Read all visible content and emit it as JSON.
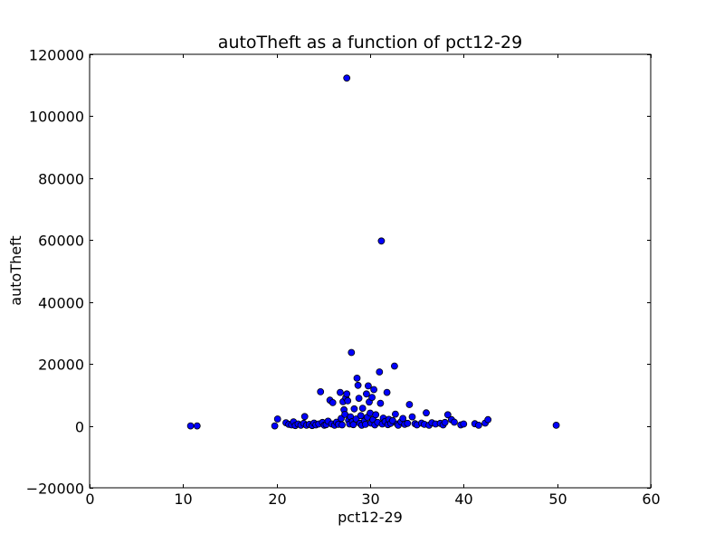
{
  "chart_data": {
    "type": "scatter",
    "title": "autoTheft as a function of pct12-29",
    "xlabel": "pct12-29",
    "ylabel": "autoTheft",
    "xlim": [
      0,
      60
    ],
    "ylim": [
      -20000,
      120000
    ],
    "xticks": [
      0,
      10,
      20,
      30,
      40,
      50,
      60
    ],
    "yticks": [
      -20000,
      0,
      20000,
      40000,
      60000,
      80000,
      100000,
      120000
    ],
    "xtick_labels": [
      "0",
      "10",
      "20",
      "30",
      "40",
      "50",
      "60"
    ],
    "ytick_labels": [
      "−20000",
      "0",
      "20000",
      "40000",
      "60000",
      "80000",
      "100000",
      "120000"
    ],
    "grid": false,
    "marker_color": "#0000ff",
    "marker_edge": "#000000",
    "series": [
      {
        "points": [
          [
            10.8,
            0
          ],
          [
            11.5,
            0
          ],
          [
            19.8,
            0
          ],
          [
            20.1,
            2200
          ],
          [
            21.0,
            1000
          ],
          [
            21.3,
            500
          ],
          [
            21.6,
            300
          ],
          [
            21.8,
            1300
          ],
          [
            22.0,
            100
          ],
          [
            22.3,
            600
          ],
          [
            22.6,
            200
          ],
          [
            22.9,
            800
          ],
          [
            23.0,
            3000
          ],
          [
            23.2,
            200
          ],
          [
            23.5,
            500
          ],
          [
            23.8,
            100
          ],
          [
            24.0,
            900
          ],
          [
            24.2,
            300
          ],
          [
            24.5,
            600
          ],
          [
            24.7,
            11000
          ],
          [
            24.9,
            1100
          ],
          [
            25.1,
            200
          ],
          [
            25.3,
            400
          ],
          [
            25.5,
            1500
          ],
          [
            25.7,
            8300
          ],
          [
            25.9,
            600
          ],
          [
            26.0,
            7500
          ],
          [
            26.2,
            200
          ],
          [
            26.4,
            1200
          ],
          [
            26.6,
            500
          ],
          [
            26.8,
            10800
          ],
          [
            26.9,
            2400
          ],
          [
            27.0,
            300
          ],
          [
            27.1,
            7800
          ],
          [
            27.2,
            5200
          ],
          [
            27.3,
            3700
          ],
          [
            27.4,
            9100
          ],
          [
            27.5,
            10300
          ],
          [
            27.5,
            112300
          ],
          [
            27.6,
            8100
          ],
          [
            27.7,
            1800
          ],
          [
            27.8,
            600
          ],
          [
            27.9,
            2900
          ],
          [
            28.0,
            23700
          ],
          [
            28.1,
            1400
          ],
          [
            28.2,
            400
          ],
          [
            28.3,
            5500
          ],
          [
            28.5,
            2200
          ],
          [
            28.6,
            15400
          ],
          [
            28.7,
            13100
          ],
          [
            28.8,
            8900
          ],
          [
            28.9,
            800
          ],
          [
            29.0,
            3300
          ],
          [
            29.1,
            200
          ],
          [
            29.2,
            5700
          ],
          [
            29.4,
            1600
          ],
          [
            29.5,
            500
          ],
          [
            29.6,
            10300
          ],
          [
            29.7,
            2800
          ],
          [
            29.8,
            12900
          ],
          [
            29.9,
            7700
          ],
          [
            30.0,
            4100
          ],
          [
            30.1,
            900
          ],
          [
            30.2,
            9200
          ],
          [
            30.3,
            2000
          ],
          [
            30.4,
            11700
          ],
          [
            30.5,
            300
          ],
          [
            30.6,
            3600
          ],
          [
            30.8,
            1100
          ],
          [
            31.0,
            17400
          ],
          [
            31.1,
            7300
          ],
          [
            31.2,
            59700
          ],
          [
            31.3,
            600
          ],
          [
            31.4,
            2500
          ],
          [
            31.6,
            1400
          ],
          [
            31.8,
            10800
          ],
          [
            31.9,
            400
          ],
          [
            32.0,
            2100
          ],
          [
            32.2,
            800
          ],
          [
            32.4,
            1700
          ],
          [
            32.6,
            19300
          ],
          [
            32.7,
            3800
          ],
          [
            32.9,
            600
          ],
          [
            33.0,
            200
          ],
          [
            33.3,
            1300
          ],
          [
            33.5,
            2400
          ],
          [
            33.7,
            500
          ],
          [
            34.0,
            800
          ],
          [
            34.2,
            6900
          ],
          [
            34.5,
            2900
          ],
          [
            34.8,
            700
          ],
          [
            35.0,
            300
          ],
          [
            35.5,
            900
          ],
          [
            35.8,
            500
          ],
          [
            36.0,
            4200
          ],
          [
            36.3,
            200
          ],
          [
            36.6,
            1000
          ],
          [
            37.0,
            600
          ],
          [
            37.5,
            800
          ],
          [
            37.8,
            300
          ],
          [
            38.0,
            1100
          ],
          [
            38.3,
            3600
          ],
          [
            38.7,
            2000
          ],
          [
            39.0,
            1200
          ],
          [
            39.7,
            300
          ],
          [
            40.0,
            600
          ],
          [
            41.2,
            700
          ],
          [
            41.6,
            200
          ],
          [
            42.3,
            900
          ],
          [
            42.6,
            2000
          ],
          [
            49.9,
            200
          ]
        ]
      }
    ]
  }
}
